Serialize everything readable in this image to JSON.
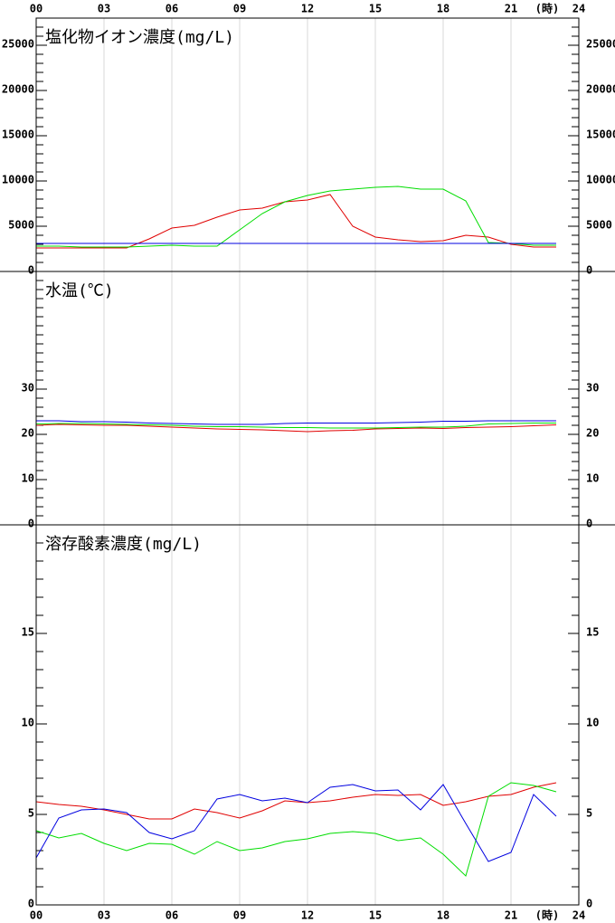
{
  "chart_data": [
    {
      "type": "line",
      "title": "塩化物イオン濃度(mg/L)",
      "x_unit_label": "(時)",
      "x": [
        0,
        1,
        2,
        3,
        4,
        5,
        6,
        7,
        8,
        9,
        10,
        11,
        12,
        13,
        14,
        15,
        16,
        17,
        18,
        19,
        20,
        21,
        22,
        23
      ],
      "xlim": [
        0,
        24
      ],
      "xticks": [
        {
          "value": 0,
          "label": "00"
        },
        {
          "value": 3,
          "label": "03"
        },
        {
          "value": 6,
          "label": "06"
        },
        {
          "value": 9,
          "label": "09"
        },
        12,
        15,
        18,
        21,
        24
      ],
      "ylim": [
        0,
        28000
      ],
      "yticks": [
        0,
        5000,
        10000,
        15000,
        20000,
        25000
      ],
      "minor_yticks": [
        1000,
        2000,
        3000,
        4000,
        6000,
        7000,
        8000,
        9000,
        11000,
        12000,
        13000,
        14000,
        16000,
        17000,
        18000,
        19000,
        21000,
        22000,
        23000,
        24000,
        26000,
        27000
      ],
      "grid": true,
      "series": [
        {
          "color": "#e00000",
          "values": [
            2600,
            2600,
            2600,
            2600,
            2600,
            3600,
            4800,
            5100,
            6000,
            6800,
            7000,
            7700,
            7900,
            8500,
            5000,
            3800,
            3500,
            3300,
            3400,
            4000,
            3800,
            3000,
            2700,
            2700
          ]
        },
        {
          "color": "#00dd00",
          "values": [
            2800,
            2800,
            2700,
            2700,
            2700,
            2800,
            2900,
            2800,
            2800,
            4600,
            6400,
            7700,
            8400,
            8900,
            9100,
            9300,
            9400,
            9100,
            9100,
            7800,
            3200,
            3100,
            2900,
            2900
          ]
        },
        {
          "color": "#0000e0",
          "values": [
            3100,
            3100,
            3100,
            3100,
            3100,
            3100,
            3100,
            3100,
            3100,
            3100,
            3100,
            3100,
            3100,
            3100,
            3100,
            3100,
            3100,
            3100,
            3100,
            3100,
            3100,
            3100,
            3100,
            3100
          ]
        }
      ]
    },
    {
      "type": "line",
      "title": "水温(℃)",
      "x": [
        0,
        1,
        2,
        3,
        4,
        5,
        6,
        7,
        8,
        9,
        10,
        11,
        12,
        13,
        14,
        15,
        16,
        17,
        18,
        19,
        20,
        21,
        22,
        23
      ],
      "xlim": [
        0,
        24
      ],
      "xticks": [
        {
          "value": 0,
          "label": "00"
        },
        {
          "value": 3,
          "label": "03"
        },
        {
          "value": 6,
          "label": "06"
        },
        {
          "value": 9,
          "label": "09"
        },
        12,
        15,
        18,
        21,
        24
      ],
      "ylim": [
        0,
        56
      ],
      "yticks": [
        0,
        10,
        20,
        30
      ],
      "minor_yticks": [
        2,
        4,
        6,
        8,
        12,
        14,
        16,
        18,
        22,
        24,
        26,
        28,
        32,
        34,
        36,
        38,
        40,
        42,
        44,
        46,
        48,
        50,
        52,
        54
      ],
      "grid": true,
      "series": [
        {
          "color": "#e00000",
          "values": [
            22.0,
            22.2,
            22.1,
            22.0,
            22.0,
            21.8,
            21.6,
            21.4,
            21.2,
            21.1,
            21.0,
            20.8,
            20.6,
            20.8,
            20.9,
            21.2,
            21.3,
            21.4,
            21.3,
            21.5,
            21.6,
            21.7,
            21.9,
            22.1
          ]
        },
        {
          "color": "#00dd00",
          "values": [
            22.3,
            22.4,
            22.4,
            22.3,
            22.2,
            22.1,
            22.0,
            21.8,
            21.7,
            21.7,
            21.6,
            21.5,
            21.5,
            21.4,
            21.4,
            21.4,
            21.5,
            21.6,
            21.6,
            21.8,
            22.3,
            22.4,
            22.5,
            22.5
          ]
        },
        {
          "color": "#0000e0",
          "values": [
            23.0,
            23.0,
            22.8,
            22.8,
            22.7,
            22.5,
            22.4,
            22.3,
            22.2,
            22.2,
            22.2,
            22.4,
            22.5,
            22.5,
            22.5,
            22.5,
            22.6,
            22.7,
            22.9,
            22.9,
            23.0,
            23.0,
            23.0,
            23.0
          ]
        }
      ]
    },
    {
      "type": "line",
      "title": "溶存酸素濃度(mg/L)",
      "x_unit_label": "(時)",
      "x": [
        0,
        1,
        2,
        3,
        4,
        5,
        6,
        7,
        8,
        9,
        10,
        11,
        12,
        13,
        14,
        15,
        16,
        17,
        18,
        19,
        20,
        21,
        22,
        23
      ],
      "xlim": [
        0,
        24
      ],
      "xticks": [
        {
          "value": 0,
          "label": "00"
        },
        {
          "value": 3,
          "label": "03"
        },
        {
          "value": 6,
          "label": "06"
        },
        {
          "value": 9,
          "label": "09"
        },
        12,
        15,
        18,
        21,
        24
      ],
      "ylim": [
        0,
        21
      ],
      "yticks": [
        0,
        5,
        10,
        15
      ],
      "minor_yticks": [
        1,
        2,
        3,
        4,
        6,
        7,
        8,
        9,
        11,
        12,
        13,
        14,
        16,
        17,
        18,
        19,
        20
      ],
      "grid": true,
      "series": [
        {
          "color": "#e00000",
          "values": [
            5.7,
            5.55,
            5.45,
            5.25,
            5.0,
            4.75,
            4.75,
            5.3,
            5.1,
            4.8,
            5.2,
            5.75,
            5.65,
            5.75,
            5.95,
            6.1,
            6.05,
            6.1,
            5.5,
            5.7,
            6.0,
            6.1,
            6.5,
            6.75
          ]
        },
        {
          "color": "#00dd00",
          "values": [
            4.1,
            3.7,
            3.95,
            3.4,
            3.0,
            3.4,
            3.35,
            2.8,
            3.5,
            3.0,
            3.15,
            3.5,
            3.65,
            3.95,
            4.05,
            3.95,
            3.55,
            3.7,
            2.8,
            1.6,
            6.0,
            6.75,
            6.6,
            6.25
          ]
        },
        {
          "color": "#0000e0",
          "values": [
            2.6,
            4.8,
            5.25,
            5.3,
            5.1,
            4.0,
            3.65,
            4.1,
            5.85,
            6.1,
            5.75,
            5.9,
            5.65,
            6.5,
            6.65,
            6.3,
            6.35,
            5.25,
            6.65,
            4.5,
            2.4,
            2.9,
            6.1,
            4.9
          ]
        }
      ]
    }
  ]
}
